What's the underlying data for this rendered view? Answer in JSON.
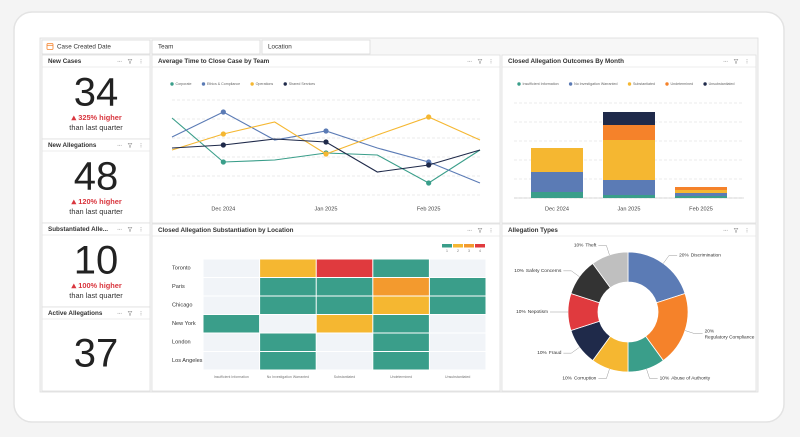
{
  "filters": [
    "Case Created Date",
    "Team",
    "Location"
  ],
  "kpis": [
    {
      "title": "New Cases",
      "value": 34,
      "change": "325% higher",
      "note": "than last quarter"
    },
    {
      "title": "New Allegations",
      "value": 48,
      "change": "120% higher",
      "note": "than last quarter"
    },
    {
      "title": "Substantiated Alle...",
      "value": 10,
      "change": "100% higher",
      "note": "than last quarter"
    },
    {
      "title": "Active Allegations",
      "value": 37
    }
  ],
  "chart_data": [
    {
      "type": "line",
      "title": "Average Time to Close Case by Team",
      "categories": [
        null,
        "Dec 2024",
        null,
        "Jan 2025",
        null,
        "Feb 2025",
        null
      ],
      "ylim": [
        0,
        10.5
      ],
      "series": [
        {
          "name": "Corporate",
          "color": "#3a9e8a",
          "values": [
            7.7,
            3.3,
            3.5,
            4.2,
            4.0,
            1.2,
            4.5
          ]
        },
        {
          "name": "Ethics & Compliance",
          "color": "#5b7bb5",
          "values": [
            5.8,
            8.3,
            5.5,
            6.4,
            4.7,
            3.3,
            1.2
          ]
        },
        {
          "name": "Operations",
          "color": "#f5b731",
          "values": [
            4.5,
            6.1,
            7.3,
            4.1,
            6.0,
            7.8,
            5.5
          ]
        },
        {
          "name": "Shared Services",
          "color": "#1f2a4a",
          "values": [
            4.7,
            5.0,
            5.6,
            5.3,
            2.3,
            3.0,
            4.5
          ]
        }
      ]
    },
    {
      "type": "stacked_bar",
      "title": "Closed Allegation Outcomes By Month",
      "categories": [
        "Dec 2024",
        "Jan 2025",
        "Feb 2025"
      ],
      "ylim": [
        0,
        95
      ],
      "series": [
        {
          "name": "Insufficient Information",
          "color": "#3a9e8a",
          "values": [
            6,
            3,
            2
          ]
        },
        {
          "name": "No Investigation Warranted",
          "color": "#5b7bb5",
          "values": [
            20,
            15,
            3
          ]
        },
        {
          "name": "Substantiated",
          "color": "#f5b731",
          "values": [
            24,
            40,
            3
          ]
        },
        {
          "name": "Undetermined",
          "color": "#f5822a",
          "values": [
            0,
            15,
            3
          ]
        },
        {
          "name": "Unsubstantiated",
          "color": "#1f2a4a",
          "values": [
            0,
            13,
            0
          ]
        }
      ]
    },
    {
      "type": "heatmap",
      "title": "Closed Allegation Substantiation by Location",
      "rows": [
        "Toronto",
        "Paris",
        "Chicago",
        "New York",
        "London",
        "Los Angeles"
      ],
      "columns": [
        "Insufficient Information",
        "No Investigation Warranted",
        "Substantiated",
        "Undetermined",
        "Unsubstantiated"
      ],
      "values": [
        [
          0,
          2,
          4,
          1,
          0
        ],
        [
          0,
          1,
          1,
          3,
          1
        ],
        [
          0,
          1,
          1,
          2,
          1
        ],
        [
          1,
          0,
          2,
          1,
          0
        ],
        [
          0,
          1,
          0,
          1,
          0
        ],
        [
          0,
          1,
          0,
          1,
          0
        ]
      ],
      "colors": [
        "#f1f4f8",
        "#3a9e8a",
        "#f5b731",
        "#f39a2e",
        "#e03a3e"
      ],
      "legend": [
        1,
        2,
        3,
        4
      ]
    },
    {
      "type": "pie",
      "title": "Allegation Types",
      "categories": [
        "Discrimination",
        "Regulatory Compliance",
        "Abuse of Authority",
        "Corruption",
        "Fraud",
        "Nepotism",
        "Safety Concerns",
        "Theft"
      ],
      "values": [
        20,
        20,
        10,
        10,
        10,
        10,
        10,
        10
      ],
      "value_labels": [
        "20%",
        "20%",
        "10%",
        "10%",
        "10%",
        "10%",
        "10%",
        "10%"
      ],
      "colors": [
        "#5b7bb5",
        "#f5822a",
        "#3a9e8a",
        "#f5b731",
        "#1f2a4a",
        "#e03a3e",
        "#333333",
        "#bfbfbf"
      ]
    }
  ]
}
